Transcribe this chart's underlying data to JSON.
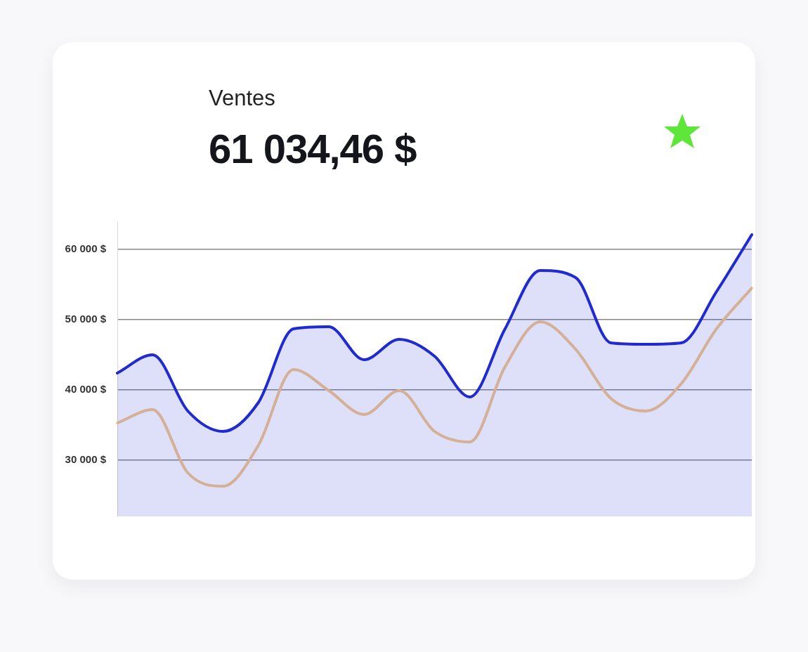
{
  "chart_data": {
    "type": "line",
    "title": "Ventes",
    "subtitle": "61 034,46 $",
    "categories": [
      null,
      null,
      null,
      null,
      null,
      null,
      null,
      null,
      null,
      null,
      null,
      null,
      null,
      null,
      null,
      null,
      null,
      null,
      null
    ],
    "series": [
      {
        "type": "area",
        "color": "#1f2bd1",
        "values": [
          42400,
          45000,
          37000,
          34100,
          38200,
          48700,
          49000,
          44300,
          47200,
          44800,
          39000,
          48700,
          57000,
          56000,
          46700,
          46500,
          46700,
          54000,
          62100
        ]
      },
      {
        "type": "line",
        "color": "#f2c88c",
        "values": [
          35300,
          37200,
          28200,
          26300,
          32100,
          42900,
          39900,
          36500,
          39900,
          34100,
          32600,
          43300,
          49700,
          45800,
          38800,
          37000,
          40900,
          48700,
          54500
        ]
      }
    ],
    "ylim": [
      22000,
      64000
    ],
    "yticks": [
      {
        "value": 30000,
        "label": "30 000 $"
      },
      {
        "value": 40000,
        "label": "40 000 $"
      },
      {
        "value": 50000,
        "label": "50 000 $"
      },
      {
        "value": 60000,
        "label": "60 000 $"
      }
    ],
    "grid": "y",
    "tick_labels": "y",
    "legend": false,
    "marker": "none",
    "line_style": "solid"
  }
}
